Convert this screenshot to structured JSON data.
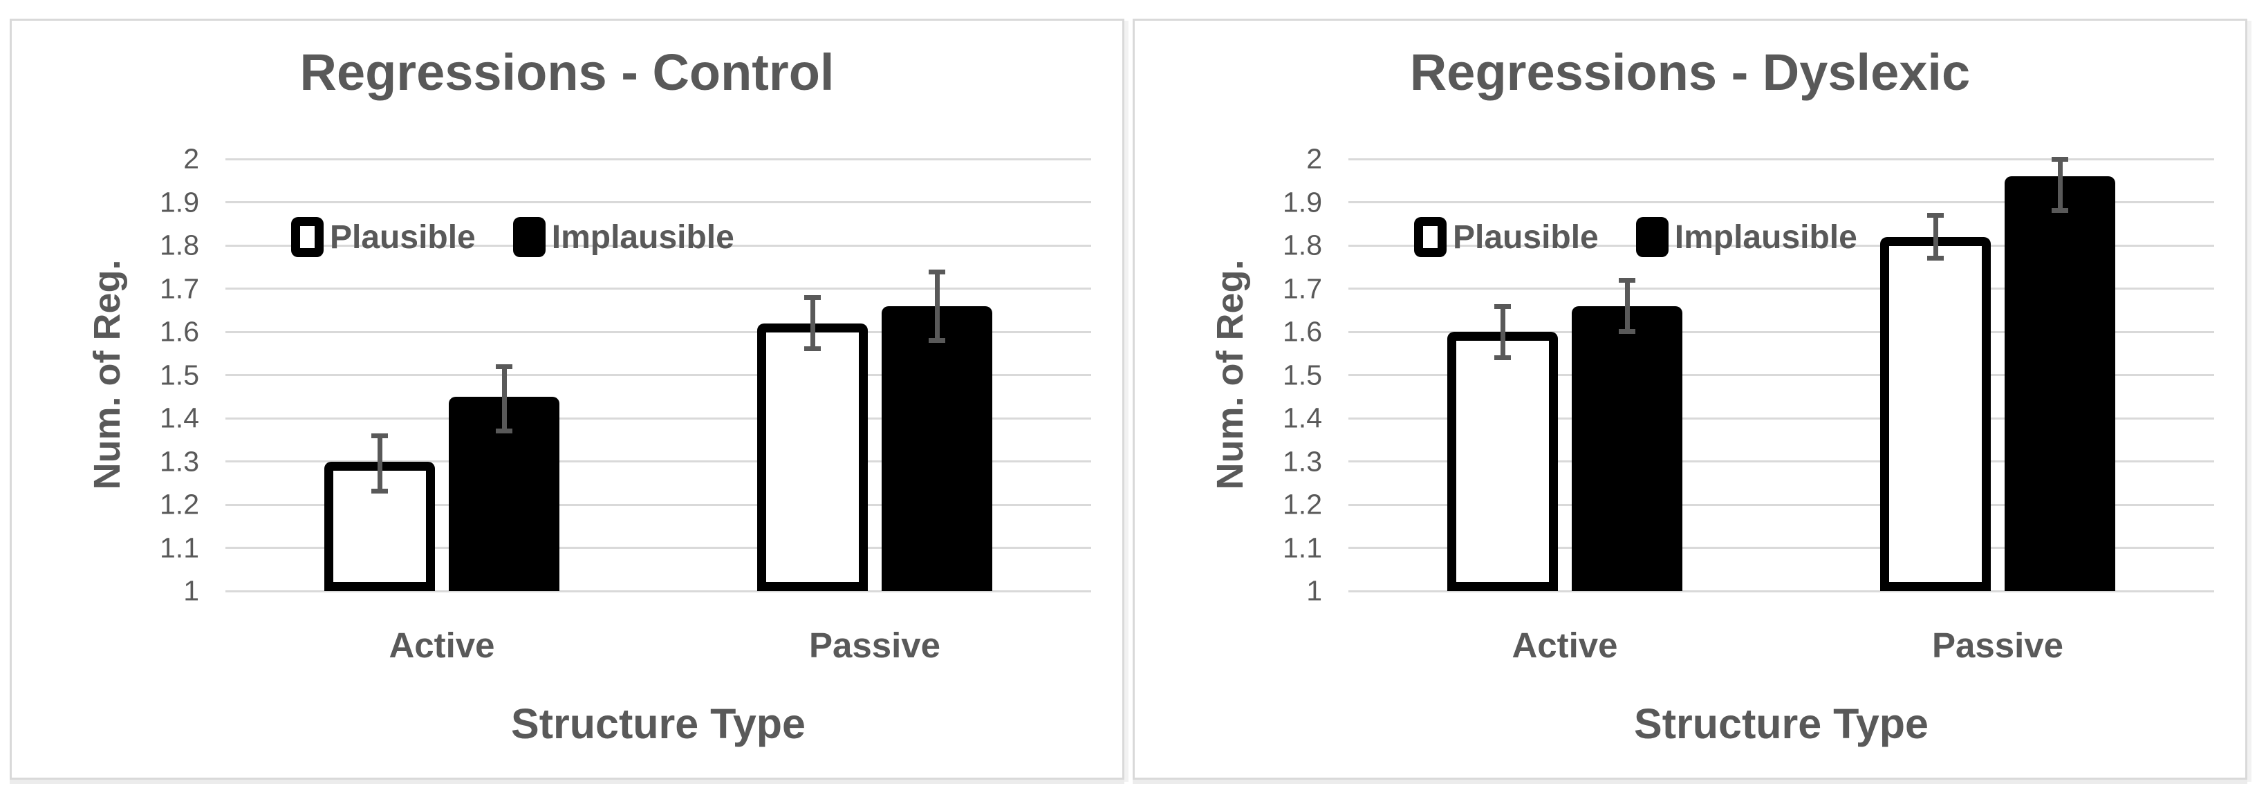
{
  "colors": {
    "text": "#595959",
    "gridline": "#D9D9D9",
    "panel_border": "#D9D9D9",
    "bar_solid": "#000000",
    "bar_outline_fill": "#FFFFFF",
    "bar_outline_stroke": "#000000",
    "error_bar": "#595959",
    "background": "#FFFFFF"
  },
  "chart_data": [
    {
      "type": "bar",
      "title": "Regressions - Control",
      "ylabel": "Num. of Reg.",
      "xlabel": "Structure Type",
      "categories": [
        "Active",
        "Passive"
      ],
      "legend_position": "inside-top-left",
      "grid": true,
      "ylim": [
        1,
        2
      ],
      "ytick_step": 0.1,
      "yticks": [
        "2",
        "1.9",
        "1.8",
        "1.7",
        "1.6",
        "1.5",
        "1.4",
        "1.3",
        "1.2",
        "1.1",
        "1"
      ],
      "series": [
        {
          "name": "Plausible",
          "style": "outline",
          "values": [
            1.3,
            1.62
          ],
          "err_low": [
            1.23,
            1.56
          ],
          "err_high": [
            1.36,
            1.68
          ]
        },
        {
          "name": "Implausible",
          "style": "solid",
          "values": [
            1.45,
            1.66
          ],
          "err_low": [
            1.37,
            1.58
          ],
          "err_high": [
            1.52,
            1.74
          ]
        }
      ]
    },
    {
      "type": "bar",
      "title": "Regressions - Dyslexic",
      "ylabel": "Num. of Reg.",
      "xlabel": "Structure Type",
      "categories": [
        "Active",
        "Passive"
      ],
      "legend_position": "inside-top-left",
      "grid": true,
      "ylim": [
        1,
        2
      ],
      "ytick_step": 0.1,
      "yticks": [
        "2",
        "1.9",
        "1.8",
        "1.7",
        "1.6",
        "1.5",
        "1.4",
        "1.3",
        "1.2",
        "1.1",
        "1"
      ],
      "series": [
        {
          "name": "Plausible",
          "style": "outline",
          "values": [
            1.6,
            1.82
          ],
          "err_low": [
            1.54,
            1.77
          ],
          "err_high": [
            1.66,
            1.87
          ]
        },
        {
          "name": "Implausible",
          "style": "solid",
          "values": [
            1.66,
            1.96
          ],
          "err_low": [
            1.6,
            1.88
          ],
          "err_high": [
            1.72,
            2.0
          ]
        }
      ]
    }
  ]
}
